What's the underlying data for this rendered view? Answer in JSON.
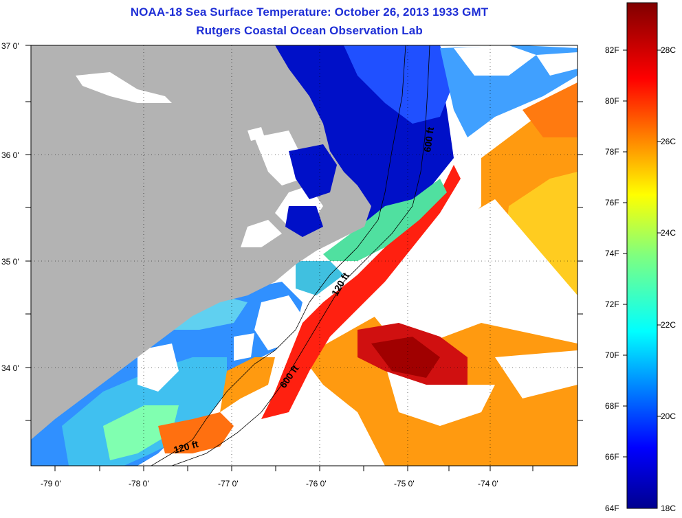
{
  "header": {
    "title": "NOAA-18 Sea Surface Temperature:  October 26, 2013 1933 GMT",
    "subtitle": "Rutgers Coastal Ocean Observation Lab"
  },
  "axes": {
    "lat_labels": [
      "37 0'",
      "36 0'",
      "35 0'",
      "34 0'"
    ],
    "lon_labels": [
      "-79 0'",
      "-78 0'",
      "-77 0'",
      "-76 0'",
      "-75 0'",
      "-74 0'"
    ]
  },
  "contours": {
    "upper_600": "600 ft",
    "mid_120": "120 ft",
    "lower_600": "600 ft",
    "lower_120": "120 ft"
  },
  "colorbar": {
    "fahrenheit": [
      "82F",
      "80F",
      "78F",
      "76F",
      "74F",
      "72F",
      "70F",
      "68F",
      "66F",
      "64F"
    ],
    "celsius": [
      "28C",
      "26C",
      "24C",
      "22C",
      "20C",
      "18C"
    ]
  },
  "colors": {
    "land": "#b3b3b3",
    "cloud": "#ffffff",
    "cold": "#00008f",
    "warm": "#800000",
    "title": "#1f2fd6"
  }
}
